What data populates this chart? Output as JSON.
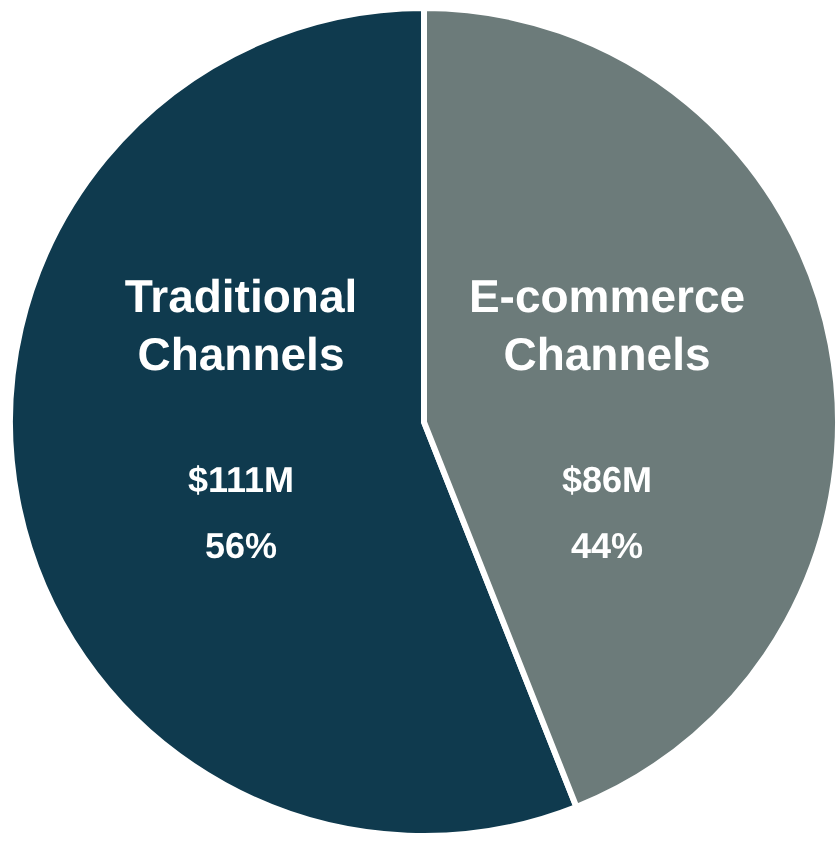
{
  "chart_data": {
    "type": "pie",
    "categories": [
      "Traditional Channels",
      "E-commerce Channels"
    ],
    "values": [
      56,
      44
    ],
    "colors": [
      "#0f3a4e",
      "#6c7b7a"
    ],
    "value_labels": [
      "56%",
      "44%"
    ],
    "annotations": [
      "$111M",
      "$86M"
    ]
  }
}
